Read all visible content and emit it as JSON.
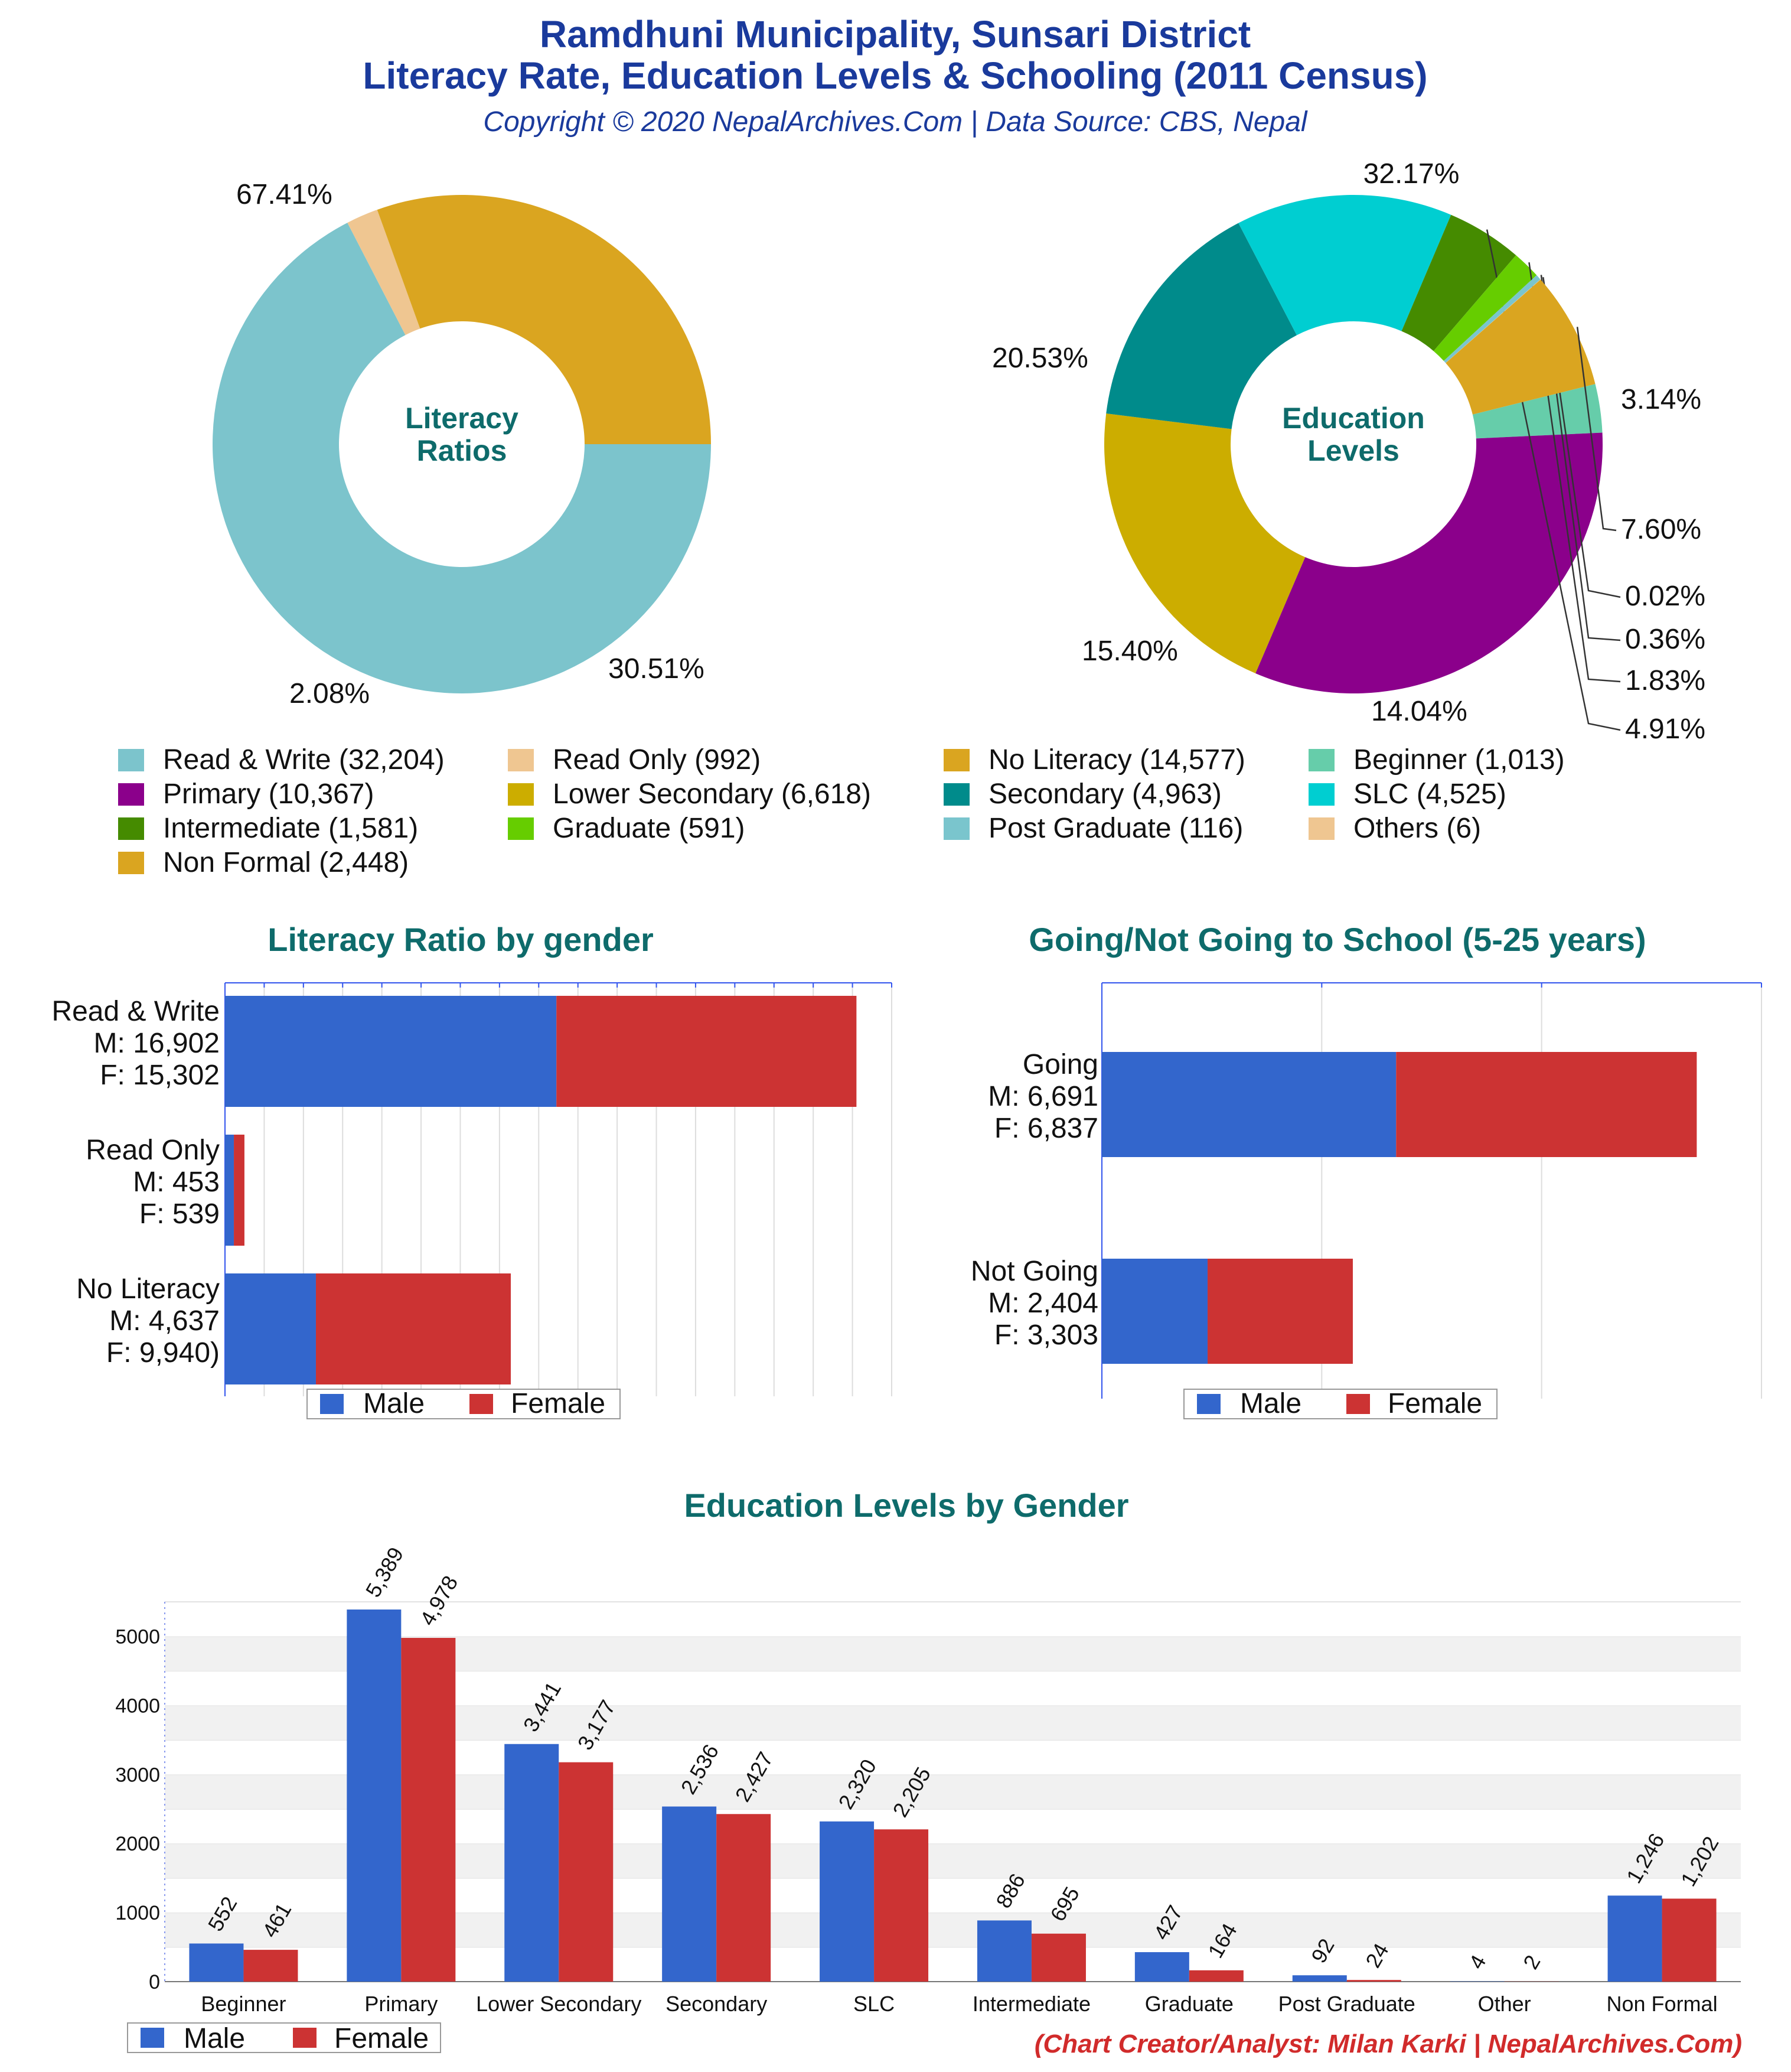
{
  "header": {
    "title_line1": "Ramdhuni Municipality, Sunsari District",
    "title_line2": "Literacy Rate, Education Levels & Schooling (2011 Census)",
    "copyright": "Copyright © 2020 NepalArchives.Com | Data Source: CBS, Nepal"
  },
  "footer": {
    "credit": "(Chart Creator/Analyst: Milan Karki | NepalArchives.Com)"
  },
  "colors": {
    "male": "#3366cc",
    "female": "#cc3333",
    "title": "#1a3a9c",
    "section_title": "#0e6b6b",
    "credit": "#d12b2b"
  },
  "chart_data": [
    {
      "type": "pie",
      "donut": true,
      "center_label": [
        "Literacy",
        "Ratios"
      ],
      "slices": [
        {
          "label": "Read & Write",
          "value": 32204,
          "percent_label": "67.41%",
          "color": "#7cc4cc"
        },
        {
          "label": "Read Only",
          "value": 992,
          "percent_label": "2.08%",
          "color": "#efc691"
        },
        {
          "label": "No Literacy",
          "value": 14577,
          "percent_label": "30.51%",
          "color": "#daa520"
        }
      ]
    },
    {
      "type": "pie",
      "donut": true,
      "center_label": [
        "Education",
        "Levels"
      ],
      "slices": [
        {
          "label": "Beginner",
          "value": 1013,
          "percent_label": "3.14%",
          "color": "#66cdaa"
        },
        {
          "label": "Primary",
          "value": 10367,
          "percent_label": "32.17%",
          "color": "#8b008b"
        },
        {
          "label": "Lower Secondary",
          "value": 6618,
          "percent_label": "20.53%",
          "color": "#ccad00"
        },
        {
          "label": "Secondary",
          "value": 4963,
          "percent_label": "15.40%",
          "color": "#008b8b"
        },
        {
          "label": "SLC",
          "value": 4525,
          "percent_label": "14.04%",
          "color": "#00ced1"
        },
        {
          "label": "Intermediate",
          "value": 1581,
          "percent_label": "4.91%",
          "color": "#458b00"
        },
        {
          "label": "Graduate",
          "value": 591,
          "percent_label": "1.83%",
          "color": "#66cd00"
        },
        {
          "label": "Post Graduate",
          "value": 116,
          "percent_label": "0.36%",
          "color": "#7ac5cd"
        },
        {
          "label": "Others",
          "value": 6,
          "percent_label": "0.02%",
          "color": "#efc691"
        },
        {
          "label": "Non Formal",
          "value": 2448,
          "percent_label": "7.60%",
          "color": "#daa520"
        }
      ],
      "legend": [
        {
          "text": "Read & Write (32,204)",
          "color": "#7cc4cc"
        },
        {
          "text": "Read Only (992)",
          "color": "#efc691"
        },
        {
          "text": "No Literacy (14,577)",
          "color": "#daa520"
        },
        {
          "text": "Beginner (1,013)",
          "color": "#66cdaa"
        },
        {
          "text": "Primary (10,367)",
          "color": "#8b008b"
        },
        {
          "text": "Lower Secondary (6,618)",
          "color": "#ccad00"
        },
        {
          "text": "Secondary (4,963)",
          "color": "#008b8b"
        },
        {
          "text": "SLC (4,525)",
          "color": "#00ced1"
        },
        {
          "text": "Intermediate (1,581)",
          "color": "#458b00"
        },
        {
          "text": "Graduate (591)",
          "color": "#66cd00"
        },
        {
          "text": "Post Graduate (116)",
          "color": "#7ac5cd"
        },
        {
          "text": "Others (6)",
          "color": "#efc691"
        },
        {
          "text": "Non Formal (2,448)",
          "color": "#daa520"
        }
      ]
    },
    {
      "type": "bar",
      "orientation": "horizontal",
      "stacked": true,
      "title": "Literacy Ratio by gender",
      "categories": [
        [
          "Read & Write",
          "M: 16,902",
          "F: 15,302"
        ],
        [
          "Read Only",
          "M: 453",
          "F: 539"
        ],
        [
          "No Literacy",
          "M: 4,637",
          "F: 9,940)"
        ]
      ],
      "series": [
        {
          "name": "Male",
          "values": [
            16902,
            453,
            4637
          ]
        },
        {
          "name": "Female",
          "values": [
            15302,
            539,
            9940
          ]
        }
      ],
      "xlim": [
        0,
        34000
      ],
      "legend": [
        "Male",
        "Female"
      ]
    },
    {
      "type": "bar",
      "orientation": "horizontal",
      "stacked": true,
      "title": "Going/Not Going to School (5-25 years)",
      "categories": [
        [
          "Going",
          "M: 6,691",
          "F: 6,837"
        ],
        [
          "Not Going",
          "M: 2,404",
          "F: 3,303"
        ]
      ],
      "series": [
        {
          "name": "Male",
          "values": [
            6691,
            2404
          ]
        },
        {
          "name": "Female",
          "values": [
            6837,
            3303
          ]
        }
      ],
      "xlim": [
        0,
        15000
      ],
      "legend": [
        "Male",
        "Female"
      ]
    },
    {
      "type": "bar",
      "orientation": "vertical",
      "title": "Education Levels by Gender",
      "categories": [
        "Beginner",
        "Primary",
        "Lower Secondary",
        "Secondary",
        "SLC",
        "Intermediate",
        "Graduate",
        "Post Graduate",
        "Other",
        "Non Formal"
      ],
      "series": [
        {
          "name": "Male",
          "values": [
            552,
            5389,
            3441,
            2536,
            2320,
            886,
            427,
            92,
            4,
            1246
          ],
          "labels": [
            "552",
            "5,389",
            "3,441",
            "2,536",
            "2,320",
            "886",
            "427",
            "92",
            "4",
            "1,246"
          ]
        },
        {
          "name": "Female",
          "values": [
            461,
            4978,
            3177,
            2427,
            2205,
            695,
            164,
            24,
            2,
            1202
          ],
          "labels": [
            "461",
            "4,978",
            "3,177",
            "2,427",
            "2,205",
            "695",
            "164",
            "24",
            "2",
            "1,202"
          ]
        }
      ],
      "ylim": [
        0,
        5500
      ],
      "yticks": [
        0,
        1000,
        2000,
        3000,
        4000,
        5000
      ],
      "legend": [
        "Male",
        "Female"
      ]
    }
  ]
}
